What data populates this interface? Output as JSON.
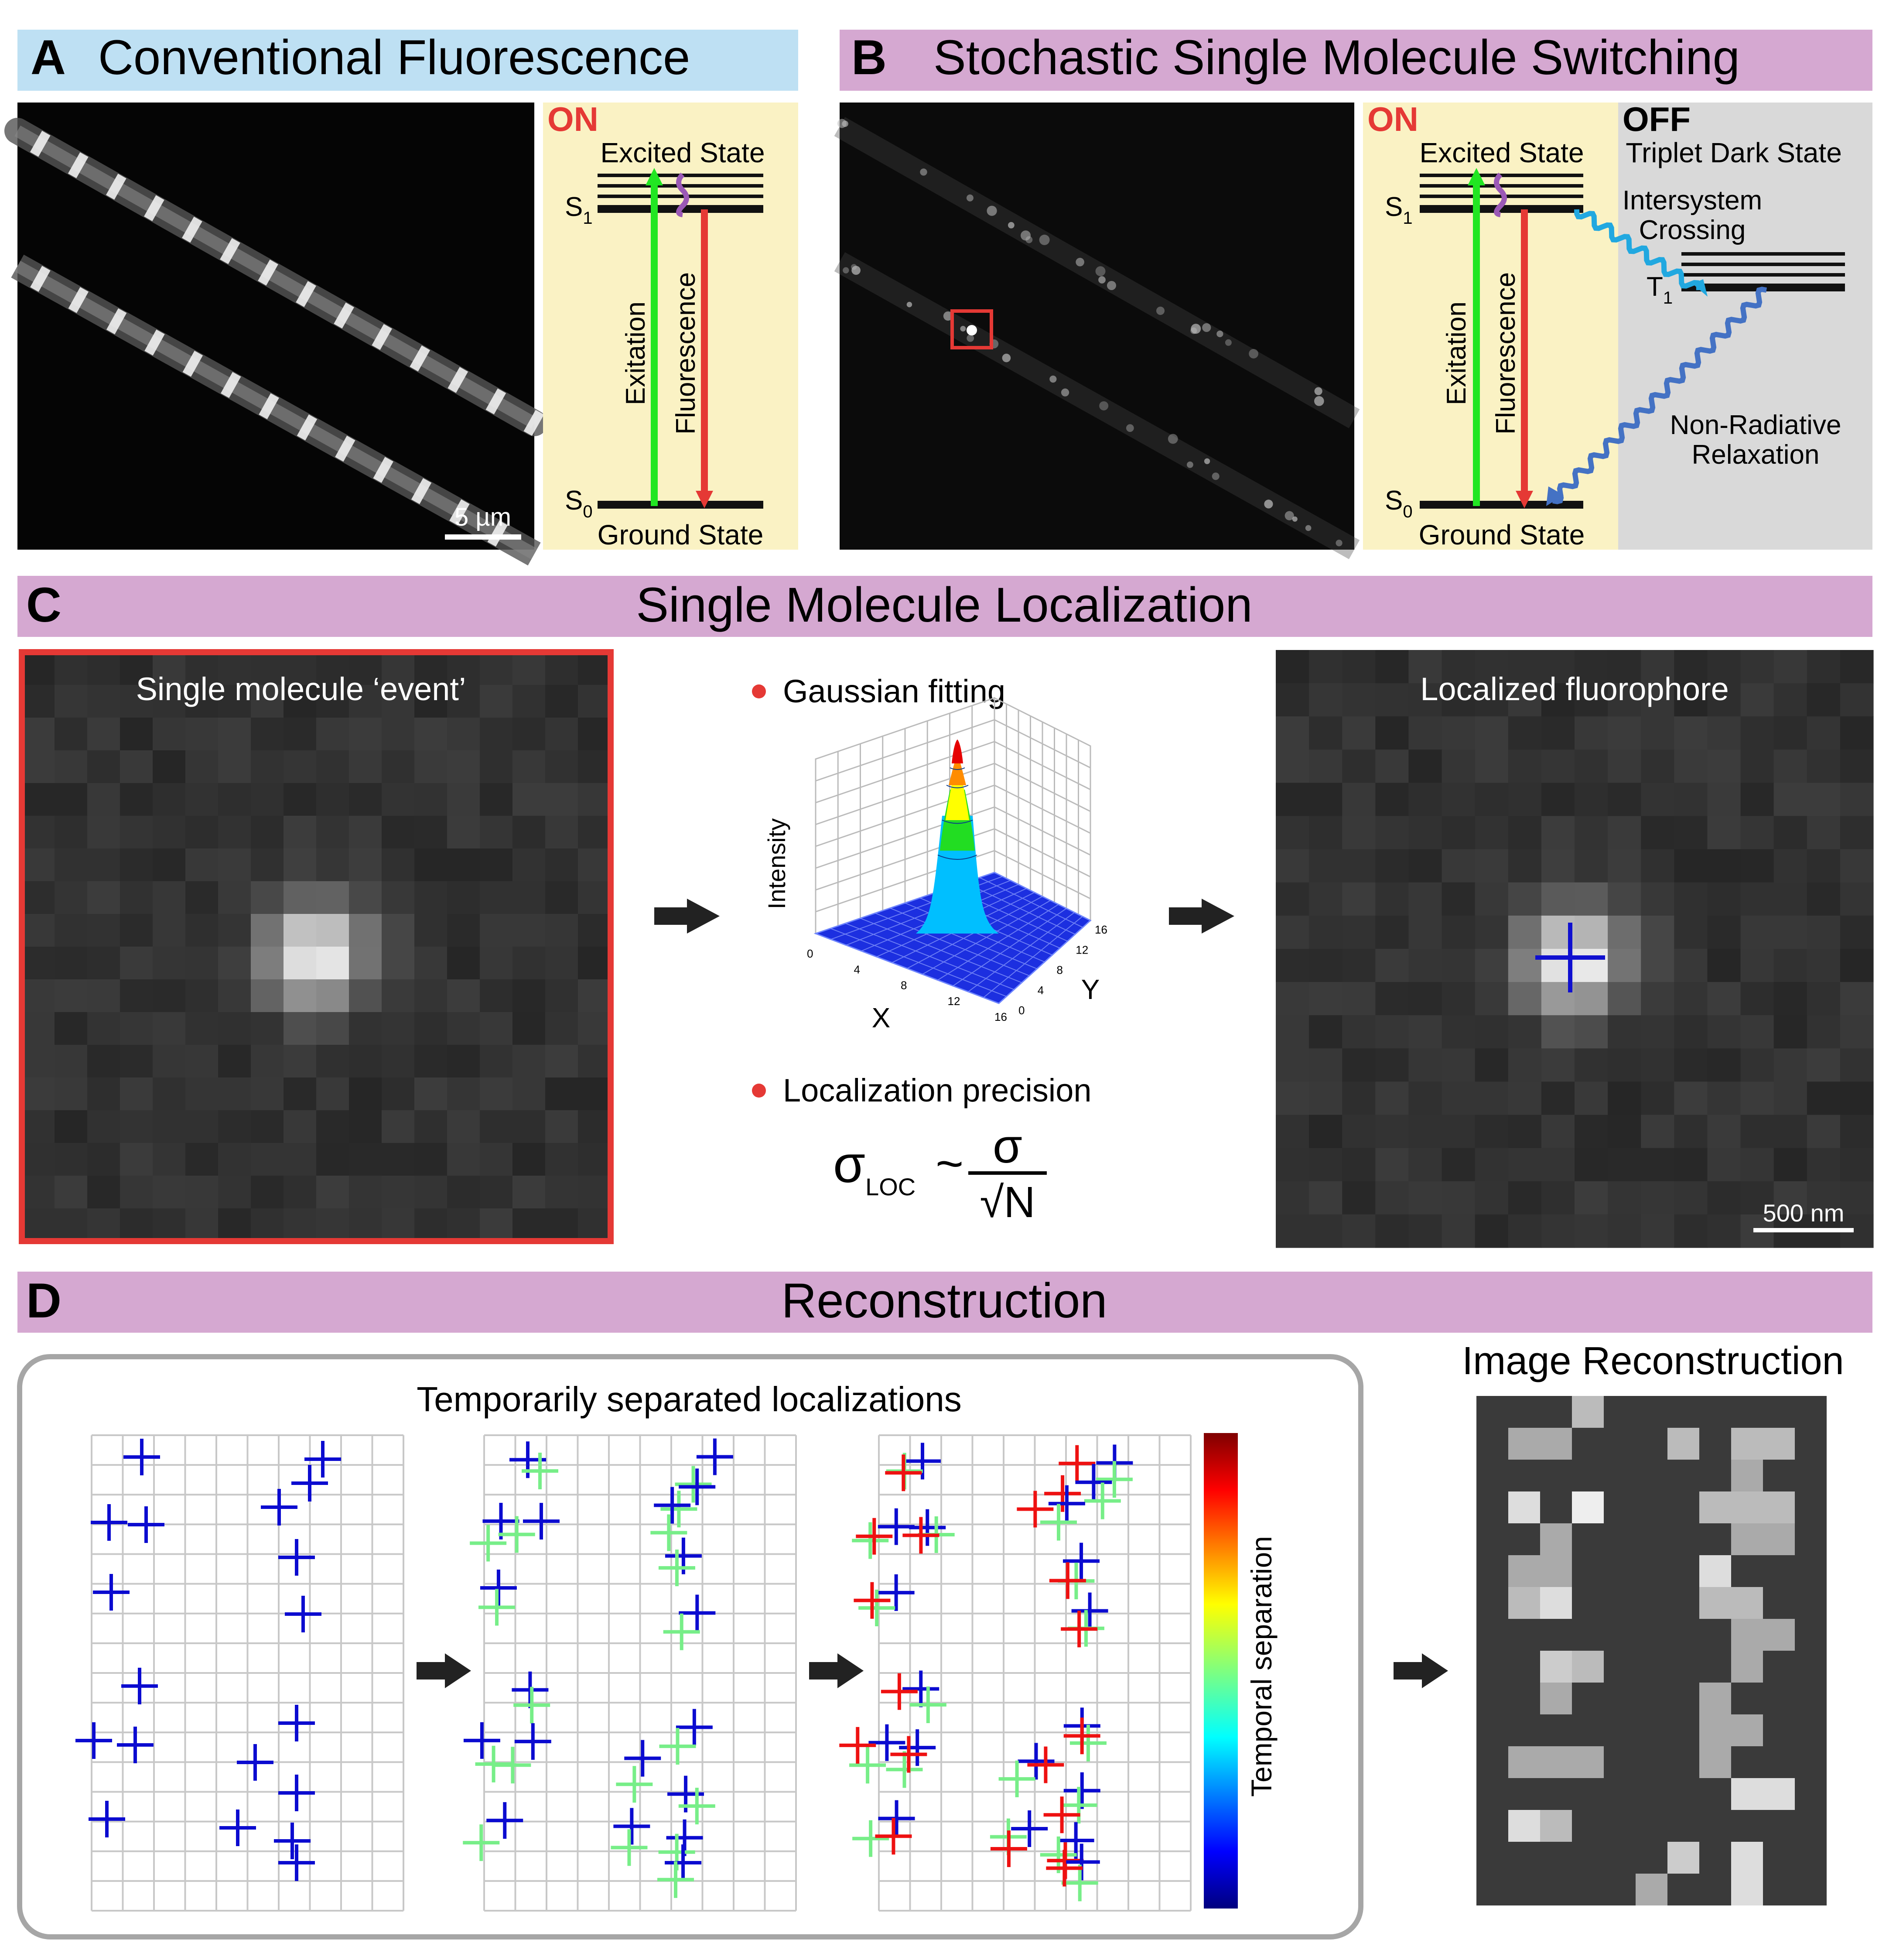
{
  "panelA": {
    "letter": "A",
    "title": "Conventional Fluorescence",
    "scale_bar": "5 µm"
  },
  "panelB": {
    "letter": "B",
    "title": "Stochastic Single Molecule Switching"
  },
  "jablonski": {
    "on": "ON",
    "off": "OFF",
    "excited_state": "Excited State",
    "ground_state": "Ground State",
    "s1": "S",
    "s1_sub": "1",
    "s0": "S",
    "s0_sub": "0",
    "excitation": "Exitation",
    "fluorescence": "Fluorescence",
    "triplet_title": "Triplet Dark State",
    "isc_1": "Intersystem",
    "isc_2": "Crossing",
    "t1": "T",
    "t1_sub": "1",
    "nr_1": "Non-Radiative",
    "nr_2": "Relaxation"
  },
  "panelC": {
    "letter": "C",
    "title": "Single Molecule Localization",
    "event_label": "Single molecule ‘event’",
    "gauss_label": "Gaussian fitting",
    "precision_label": "Localization precision",
    "intensity_axis": "Intensity",
    "x_axis": "X",
    "y_axis": "Y",
    "x_ticks": [
      "0",
      "4",
      "8",
      "12",
      "16"
    ],
    "y_ticks": [
      "0",
      "4",
      "8",
      "12",
      "16"
    ],
    "sigma": "σ",
    "loc_sub": "LOC",
    "tilde": "~",
    "sqrtN": "√N",
    "localized_label": "Localized fluorophore",
    "scale_bar": "500 nm"
  },
  "panelD": {
    "letter": "D",
    "title": "Reconstruction",
    "temporal_title": "Temporarily separated localizations",
    "colorbar_label": "Temporal separation",
    "reconstruction_title": "Image Reconstruction"
  },
  "colors": {
    "blue_header": "#bee0f3",
    "pink_header": "#d5a8d1",
    "on_bg": "#faf2c4",
    "off_bg": "#d9d9d9",
    "red": "#e53935",
    "green": "#22e622",
    "cross_blue": "#0b0bd0",
    "cross_green": "#77ee88",
    "cross_red": "#ee1111"
  }
}
